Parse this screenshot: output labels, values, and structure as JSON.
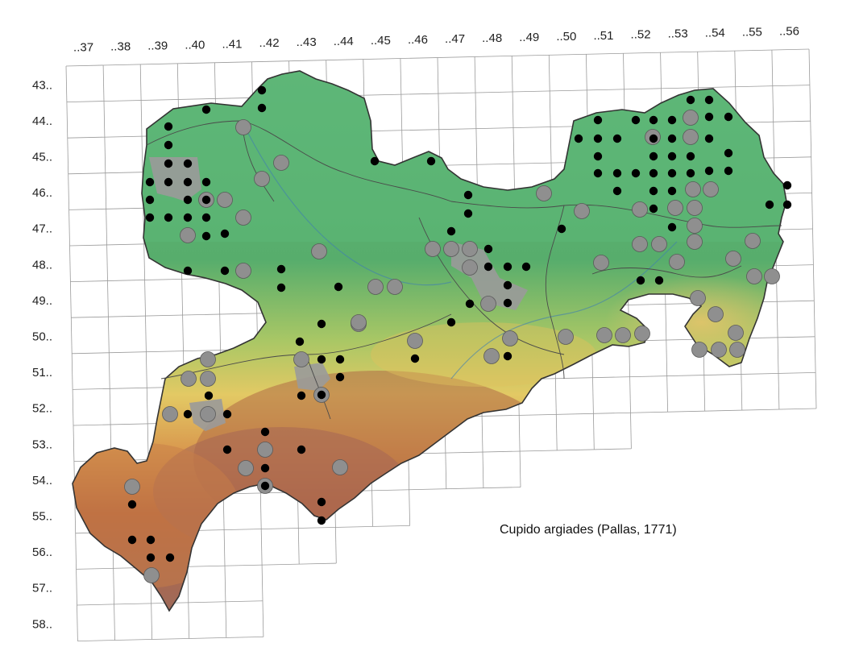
{
  "map": {
    "species_label": "Cupido argiades (Pallas, 1771)",
    "columns": [
      "..37",
      "..38",
      "..39",
      "..40",
      "..41",
      "..42",
      "..43",
      "..44",
      "..45",
      "..46",
      "..47",
      "..48",
      "..49",
      "..50",
      "..51",
      "..52",
      "..53",
      "..54",
      "..55",
      "..56"
    ],
    "rows": [
      "43..",
      "44..",
      "45..",
      "46..",
      "47..",
      "48..",
      "49..",
      "50..",
      "51..",
      "52..",
      "53..",
      "54..",
      "55..",
      "56..",
      "57..",
      "58.."
    ],
    "legend_colors": {
      "recent_record": "#000000",
      "historic_record": "#8f8f8f",
      "low_elevation": "#4fae6b",
      "mid_elevation": "#e9cf6a",
      "high_elevation": "#9b5a44",
      "urban_area": "#9a9a9a"
    },
    "records_black": [
      [
        1.4,
        -1.8
      ],
      [
        4.2,
        -3.3
      ],
      [
        4.1,
        -1.1
      ],
      [
        7.5,
        -8.0
      ],
      [
        10.0,
        -8.0
      ],
      [
        2.5,
        -5.5
      ],
      [
        4.2,
        -6.0
      ],
      [
        5.4,
        -7.8
      ],
      [
        3.2,
        -3.9
      ],
      [
        1.5,
        -2.6
      ],
      [
        3.3,
        -2.6
      ],
      [
        4.6,
        -2.6
      ],
      [
        2.6,
        -1.3
      ],
      [
        0.5,
        -1.5
      ],
      [
        0.5,
        -3.8
      ],
      [
        3.0,
        -5.5
      ],
      [
        4.6,
        -7.6
      ],
      [
        5.6,
        -7.0
      ],
      [
        8.4,
        -8.6
      ],
      [
        6.3,
        -10.8
      ],
      [
        6.5,
        -9.3
      ],
      [
        6.5,
        -11.5
      ],
      [
        6.5,
        -12.1
      ],
      [
        6.7,
        -12.5
      ],
      [
        8.0,
        -13.0
      ],
      [
        8.5,
        -13.4
      ],
      [
        8.6,
        -11.0
      ],
      [
        7.5,
        -11.7
      ],
      [
        7.0,
        -11.8
      ],
      [
        6.7,
        -12.8
      ],
      [
        6.0,
        -13.5
      ],
      [
        5.8,
        -13.8
      ]
    ],
    "records_grey_count": 58,
    "map_source": "Sachsen grid atlas"
  }
}
